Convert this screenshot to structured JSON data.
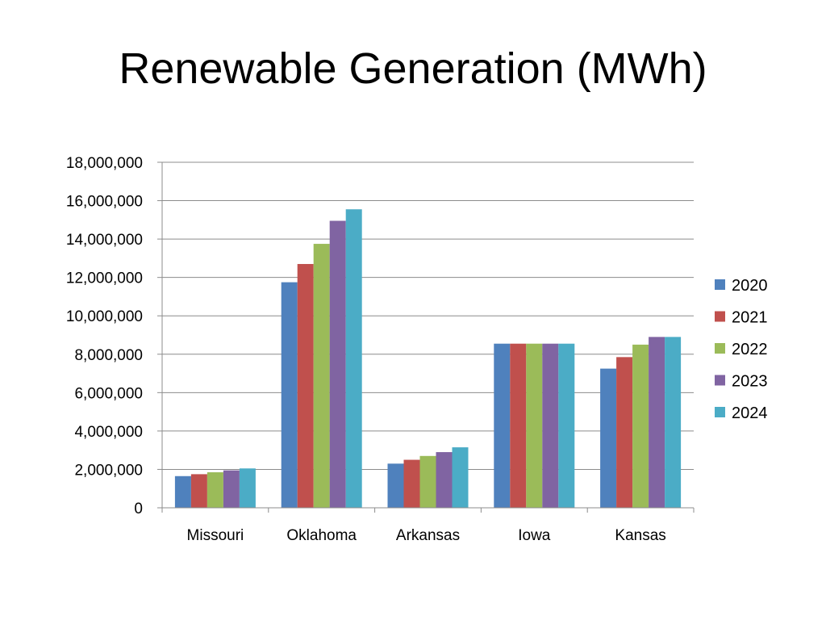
{
  "slide": {
    "title": "Renewable Generation (MWh)"
  },
  "chart_data": {
    "type": "bar",
    "title": "Renewable Generation (MWh)",
    "xlabel": "",
    "ylabel": "",
    "categories": [
      "Missouri",
      "Oklahoma",
      "Arkansas",
      "Iowa",
      "Kansas"
    ],
    "ylim": [
      0,
      18000000
    ],
    "yticks": [
      0,
      2000000,
      4000000,
      6000000,
      8000000,
      10000000,
      12000000,
      14000000,
      16000000,
      18000000
    ],
    "ytick_labels": [
      "0",
      "2,000,000",
      "4,000,000",
      "6,000,000",
      "8,000,000",
      "10,000,000",
      "12,000,000",
      "14,000,000",
      "16,000,000",
      "18,000,000"
    ],
    "grid": true,
    "legend_position": "right",
    "series": [
      {
        "name": "2020",
        "color": "#4F81BD",
        "values": [
          1650000,
          11750000,
          2300000,
          8550000,
          7250000
        ]
      },
      {
        "name": "2021",
        "color": "#C0504D",
        "values": [
          1750000,
          12700000,
          2500000,
          8550000,
          7850000
        ]
      },
      {
        "name": "2022",
        "color": "#9BBB59",
        "values": [
          1850000,
          13750000,
          2700000,
          8550000,
          8500000
        ]
      },
      {
        "name": "2023",
        "color": "#8064A2",
        "values": [
          1950000,
          14950000,
          2900000,
          8550000,
          8900000
        ]
      },
      {
        "name": "2024",
        "color": "#4BACC6",
        "values": [
          2050000,
          15550000,
          3150000,
          8550000,
          8900000
        ]
      }
    ]
  }
}
